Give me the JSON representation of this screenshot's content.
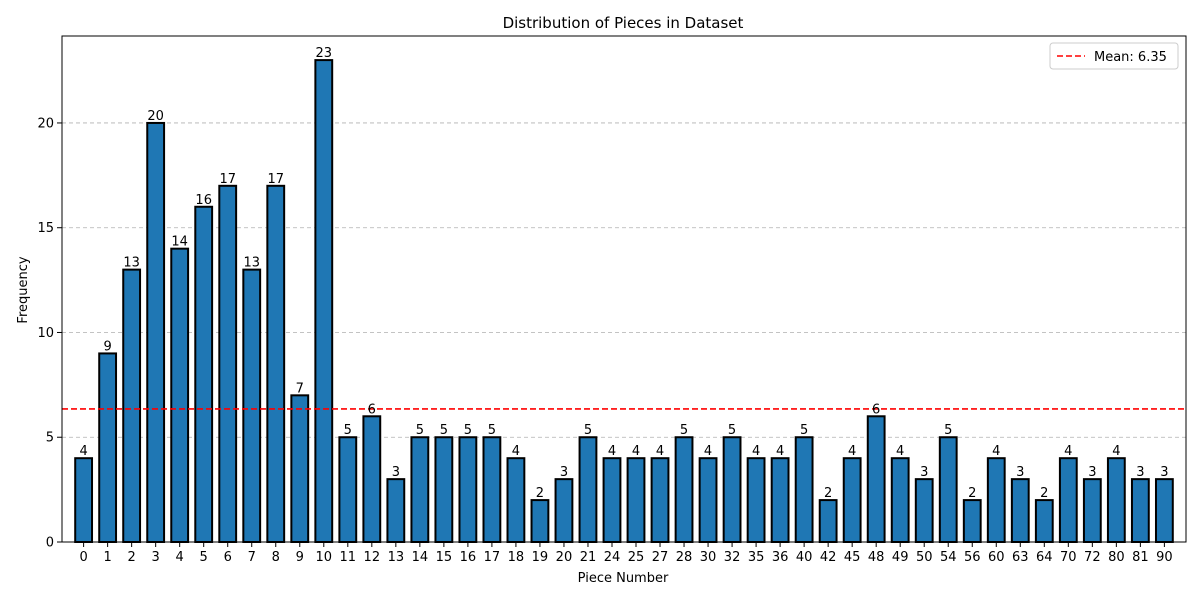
{
  "chart_data": {
    "type": "bar",
    "title": "Distribution of Pieces in Dataset",
    "xlabel": "Piece Number",
    "ylabel": "Frequency",
    "ylim": [
      0,
      24.15
    ],
    "yticks": [
      "0",
      "5",
      "10",
      "15",
      "20"
    ],
    "grid": "y-dashed",
    "legend_position": "top-right",
    "bar_color": "#1f77b4",
    "bar_edge_color": "#000000",
    "mean_line": {
      "value": 6.35,
      "label": "Mean: 6.35",
      "color": "#ff0000",
      "style": "dashed"
    },
    "categories": [
      "0",
      "1",
      "2",
      "3",
      "4",
      "5",
      "6",
      "7",
      "8",
      "9",
      "10",
      "11",
      "12",
      "13",
      "14",
      "15",
      "16",
      "17",
      "18",
      "19",
      "20",
      "21",
      "24",
      "25",
      "27",
      "28",
      "30",
      "32",
      "35",
      "36",
      "40",
      "42",
      "45",
      "48",
      "49",
      "50",
      "54",
      "56",
      "60",
      "63",
      "64",
      "70",
      "72",
      "80",
      "81",
      "90"
    ],
    "values": [
      4,
      9,
      13,
      20,
      14,
      16,
      17,
      13,
      17,
      7,
      23,
      5,
      6,
      3,
      5,
      5,
      5,
      5,
      4,
      2,
      3,
      5,
      4,
      4,
      4,
      5,
      4,
      5,
      4,
      4,
      5,
      2,
      4,
      6,
      4,
      3,
      5,
      2,
      4,
      3,
      2,
      4,
      3,
      4,
      3,
      3
    ]
  }
}
